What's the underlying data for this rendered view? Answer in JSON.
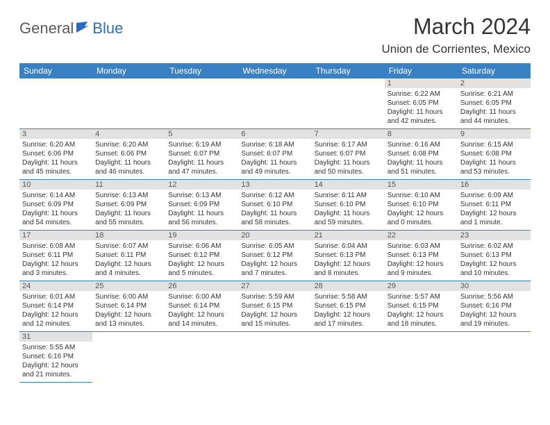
{
  "logo": {
    "part1": "General",
    "part2": "Blue"
  },
  "title": "March 2024",
  "location": "Union de Corrientes, Mexico",
  "colors": {
    "header_bg": "#3a81c4",
    "header_text": "#ffffff",
    "day_num_bg": "#e2e2e2",
    "border": "#3a81c4",
    "logo_gray": "#5a5a5a",
    "logo_blue": "#2a6db8"
  },
  "weekdays": [
    "Sunday",
    "Monday",
    "Tuesday",
    "Wednesday",
    "Thursday",
    "Friday",
    "Saturday"
  ],
  "weeks": [
    [
      null,
      null,
      null,
      null,
      null,
      {
        "n": "1",
        "sr": "6:22 AM",
        "ss": "6:05 PM",
        "dl": "11 hours and 42 minutes."
      },
      {
        "n": "2",
        "sr": "6:21 AM",
        "ss": "6:05 PM",
        "dl": "11 hours and 44 minutes."
      }
    ],
    [
      {
        "n": "3",
        "sr": "6:20 AM",
        "ss": "6:06 PM",
        "dl": "11 hours and 45 minutes."
      },
      {
        "n": "4",
        "sr": "6:20 AM",
        "ss": "6:06 PM",
        "dl": "11 hours and 46 minutes."
      },
      {
        "n": "5",
        "sr": "6:19 AM",
        "ss": "6:07 PM",
        "dl": "11 hours and 47 minutes."
      },
      {
        "n": "6",
        "sr": "6:18 AM",
        "ss": "6:07 PM",
        "dl": "11 hours and 49 minutes."
      },
      {
        "n": "7",
        "sr": "6:17 AM",
        "ss": "6:07 PM",
        "dl": "11 hours and 50 minutes."
      },
      {
        "n": "8",
        "sr": "6:16 AM",
        "ss": "6:08 PM",
        "dl": "11 hours and 51 minutes."
      },
      {
        "n": "9",
        "sr": "6:15 AM",
        "ss": "6:08 PM",
        "dl": "11 hours and 53 minutes."
      }
    ],
    [
      {
        "n": "10",
        "sr": "6:14 AM",
        "ss": "6:09 PM",
        "dl": "11 hours and 54 minutes."
      },
      {
        "n": "11",
        "sr": "6:13 AM",
        "ss": "6:09 PM",
        "dl": "11 hours and 55 minutes."
      },
      {
        "n": "12",
        "sr": "6:13 AM",
        "ss": "6:09 PM",
        "dl": "11 hours and 56 minutes."
      },
      {
        "n": "13",
        "sr": "6:12 AM",
        "ss": "6:10 PM",
        "dl": "11 hours and 58 minutes."
      },
      {
        "n": "14",
        "sr": "6:11 AM",
        "ss": "6:10 PM",
        "dl": "11 hours and 59 minutes."
      },
      {
        "n": "15",
        "sr": "6:10 AM",
        "ss": "6:10 PM",
        "dl": "12 hours and 0 minutes."
      },
      {
        "n": "16",
        "sr": "6:09 AM",
        "ss": "6:11 PM",
        "dl": "12 hours and 1 minute."
      }
    ],
    [
      {
        "n": "17",
        "sr": "6:08 AM",
        "ss": "6:11 PM",
        "dl": "12 hours and 3 minutes."
      },
      {
        "n": "18",
        "sr": "6:07 AM",
        "ss": "6:11 PM",
        "dl": "12 hours and 4 minutes."
      },
      {
        "n": "19",
        "sr": "6:06 AM",
        "ss": "6:12 PM",
        "dl": "12 hours and 5 minutes."
      },
      {
        "n": "20",
        "sr": "6:05 AM",
        "ss": "6:12 PM",
        "dl": "12 hours and 7 minutes."
      },
      {
        "n": "21",
        "sr": "6:04 AM",
        "ss": "6:13 PM",
        "dl": "12 hours and 8 minutes."
      },
      {
        "n": "22",
        "sr": "6:03 AM",
        "ss": "6:13 PM",
        "dl": "12 hours and 9 minutes."
      },
      {
        "n": "23",
        "sr": "6:02 AM",
        "ss": "6:13 PM",
        "dl": "12 hours and 10 minutes."
      }
    ],
    [
      {
        "n": "24",
        "sr": "6:01 AM",
        "ss": "6:14 PM",
        "dl": "12 hours and 12 minutes."
      },
      {
        "n": "25",
        "sr": "6:00 AM",
        "ss": "6:14 PM",
        "dl": "12 hours and 13 minutes."
      },
      {
        "n": "26",
        "sr": "6:00 AM",
        "ss": "6:14 PM",
        "dl": "12 hours and 14 minutes."
      },
      {
        "n": "27",
        "sr": "5:59 AM",
        "ss": "6:15 PM",
        "dl": "12 hours and 15 minutes."
      },
      {
        "n": "28",
        "sr": "5:58 AM",
        "ss": "6:15 PM",
        "dl": "12 hours and 17 minutes."
      },
      {
        "n": "29",
        "sr": "5:57 AM",
        "ss": "6:15 PM",
        "dl": "12 hours and 18 minutes."
      },
      {
        "n": "30",
        "sr": "5:56 AM",
        "ss": "6:16 PM",
        "dl": "12 hours and 19 minutes."
      }
    ],
    [
      {
        "n": "31",
        "sr": "5:55 AM",
        "ss": "6:16 PM",
        "dl": "12 hours and 21 minutes."
      },
      null,
      null,
      null,
      null,
      null,
      null
    ]
  ],
  "labels": {
    "sunrise": "Sunrise:",
    "sunset": "Sunset:",
    "daylight": "Daylight:"
  }
}
